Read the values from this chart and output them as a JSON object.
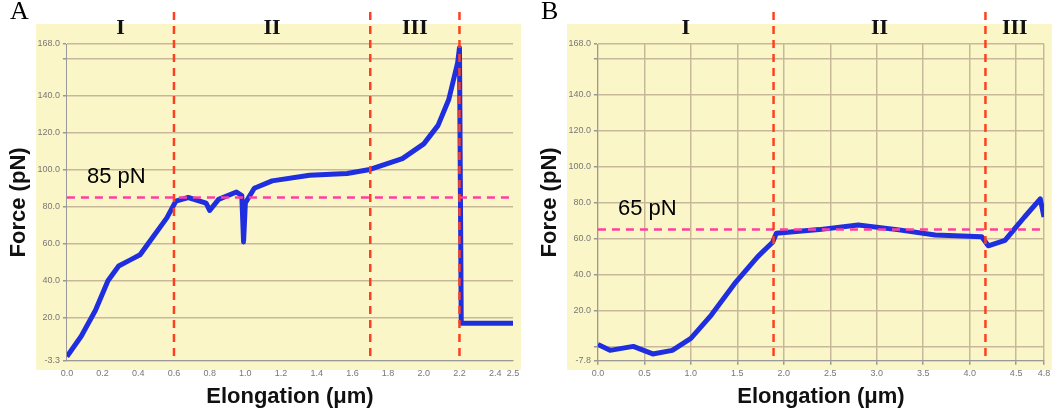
{
  "chart_data": [
    {
      "type": "line",
      "title": "A",
      "xlabel": "Elongation (μm)",
      "ylabel": "Force (pN)",
      "series": [
        {
          "color": "#1f2fe0",
          "x": [
            0,
            0.08,
            0.16,
            0.23,
            0.29,
            0.35,
            0.41,
            0.47,
            0.56,
            0.61,
            0.68,
            0.78,
            0.8,
            0.85,
            0.95,
            0.98,
            0.99,
            1.0,
            1.05,
            1.15,
            1.36,
            1.57,
            1.69,
            1.88,
            2.0,
            2.08,
            2.14,
            2.19,
            2.2,
            2.21,
            2.5
          ],
          "values": [
            -1,
            10,
            24,
            40,
            48,
            51,
            54,
            62,
            74,
            83,
            85,
            82,
            78,
            84,
            88,
            86,
            61,
            82,
            90,
            94,
            97,
            98,
            100,
            106,
            114,
            124,
            138,
            158,
            166,
            17,
            17
          ]
        }
      ],
      "xlim": [
        0,
        2.5
      ],
      "ylim": [
        -3.3,
        168
      ],
      "xticks": [
        {
          "value": 0,
          "label": "0.0"
        },
        0.2,
        0.4,
        0.6,
        0.8,
        {
          "value": 1,
          "label": "1.0"
        },
        1.2,
        1.4,
        1.6,
        1.8,
        {
          "value": 2,
          "label": "2.0"
        },
        2.2,
        2.4,
        2.5
      ],
      "yticks": [
        {
          "value": -3.3,
          "label": "-3.3"
        },
        {
          "value": 20,
          "label": "20.0"
        },
        {
          "value": 40,
          "label": "40.0"
        },
        {
          "value": 60,
          "label": "60.0"
        },
        {
          "value": 80,
          "label": "80.0"
        },
        {
          "value": 100,
          "label": "100.0"
        },
        {
          "value": 120,
          "label": "120.0"
        },
        {
          "value": 140,
          "label": "140.0"
        },
        {
          "value": 160,
          "label": null
        },
        {
          "value": 168,
          "label": "168.0"
        }
      ],
      "grid": "y",
      "legend": false,
      "marker": "none",
      "line_style": "solid",
      "ref_lines": [
        {
          "axis": "y",
          "value": 85,
          "label": "85 pN",
          "color": "#ff3fa0",
          "line_style": "dashed"
        },
        {
          "axis": "x",
          "value": 0.6,
          "label": null,
          "color": "#ff4020",
          "line_style": "dashed"
        },
        {
          "axis": "x",
          "value": 1.7,
          "label": null,
          "color": "#ff4020",
          "line_style": "dashed"
        },
        {
          "axis": "x",
          "value": 2.2,
          "label": null,
          "color": "#ff4020",
          "line_style": "dashed"
        }
      ],
      "annotations": [
        "I",
        "II",
        "III"
      ]
    },
    {
      "type": "line",
      "title": "B",
      "xlabel": "Elongation (μm)",
      "ylabel": "Force (pN)",
      "series": [
        {
          "color": "#1f2fe0",
          "x": [
            0,
            0.13,
            0.38,
            0.59,
            0.8,
            1.0,
            1.22,
            1.47,
            1.72,
            1.88,
            1.92,
            2.38,
            2.8,
            3.22,
            3.63,
            4.13,
            4.2,
            4.38,
            4.59,
            4.76,
            4.8
          ],
          "values": [
            1.3,
            -2,
            0.2,
            -4,
            -2,
            4.6,
            17.6,
            35,
            50,
            58,
            63,
            65,
            67.6,
            65,
            62,
            61,
            56,
            59,
            72,
            82,
            72
          ]
        }
      ],
      "xlim": [
        0,
        4.8
      ],
      "ylim": [
        -7.8,
        168
      ],
      "xticks": [
        {
          "value": 0,
          "label": "0.0"
        },
        0.5,
        {
          "value": 1,
          "label": "1.0"
        },
        1.5,
        {
          "value": 2,
          "label": "2.0"
        },
        2.5,
        {
          "value": 3,
          "label": "3.0"
        },
        3.5,
        {
          "value": 4,
          "label": "4.0"
        },
        4.5,
        4.8
      ],
      "yticks": [
        {
          "value": -7.8,
          "label": "-7.8"
        },
        {
          "value": 0,
          "label": null
        },
        {
          "value": 20,
          "label": "20.0"
        },
        {
          "value": 40,
          "label": "40.0"
        },
        {
          "value": 60,
          "label": "60.0"
        },
        {
          "value": 80,
          "label": "80.0"
        },
        {
          "value": 100,
          "label": "100.0"
        },
        {
          "value": 120,
          "label": "120.0"
        },
        {
          "value": 140,
          "label": "140.0"
        },
        {
          "value": 160,
          "label": null
        },
        {
          "value": 168,
          "label": "168.0"
        }
      ],
      "grid": true,
      "legend": false,
      "marker": "none",
      "line_style": "solid",
      "ref_lines": [
        {
          "axis": "y",
          "value": 65,
          "label": "65 pN",
          "color": "#ff3fa0",
          "line_style": "dashed"
        },
        {
          "axis": "x",
          "value": 1.89,
          "label": null,
          "color": "#ff4020",
          "line_style": "dashed"
        },
        {
          "axis": "x",
          "value": 4.17,
          "label": null,
          "color": "#ff4020",
          "line_style": "dashed"
        }
      ],
      "annotations": [
        "I",
        "II",
        "III"
      ]
    }
  ]
}
